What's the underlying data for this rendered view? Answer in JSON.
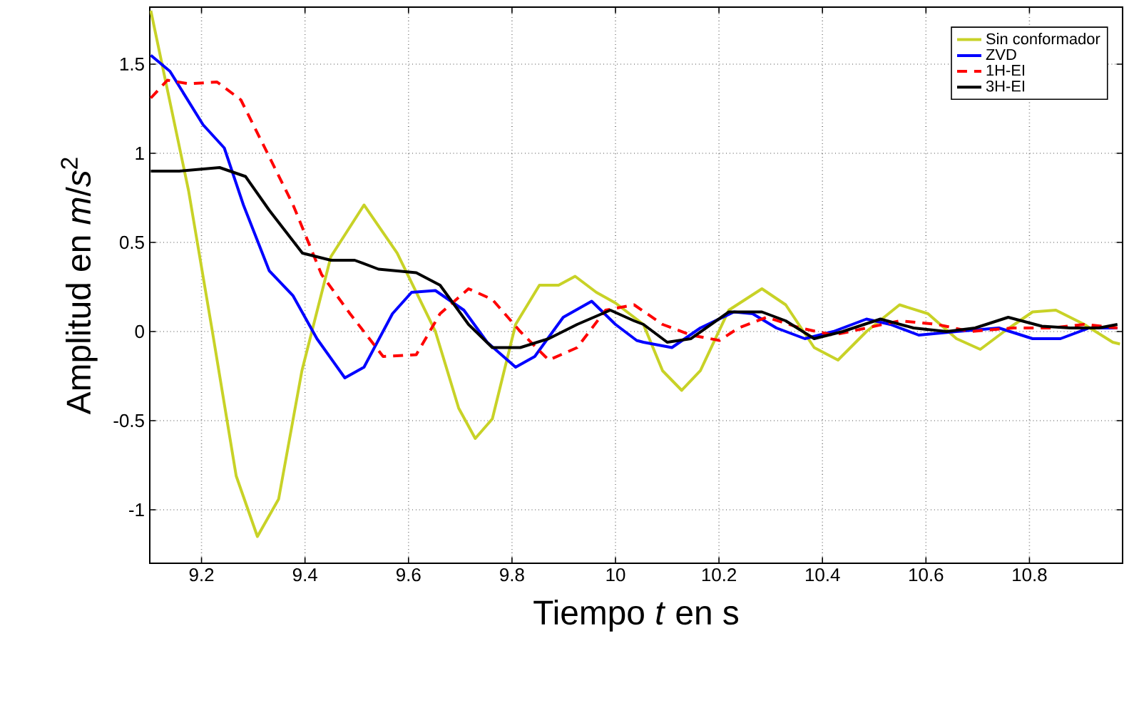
{
  "chart_data": {
    "type": "line",
    "xlabel": "Tiempo *t* en s",
    "ylabel": "Amplitud en *m*/*s*$^{2}$",
    "xlim": [
      9.1,
      10.98
    ],
    "ylim": [
      -1.3,
      1.82
    ],
    "xticks": [
      9.2,
      9.4,
      9.6,
      9.8,
      10,
      10.2,
      10.4,
      10.6,
      10.8
    ],
    "yticks": [
      -1,
      -0.5,
      0,
      0.5,
      1,
      1.5
    ],
    "grid": true,
    "legend": "top right",
    "series": [
      {
        "name": "Sin conformador",
        "color": "#c8d227",
        "line_style": "solid",
        "x": [
          9.102,
          9.175,
          9.221,
          9.267,
          9.308,
          9.349,
          9.394,
          9.45,
          9.514,
          9.578,
          9.652,
          9.697,
          9.729,
          9.762,
          9.807,
          9.853,
          9.89,
          9.922,
          9.963,
          10.0,
          10.054,
          10.091,
          10.128,
          10.164,
          10.219,
          10.283,
          10.329,
          10.384,
          10.43,
          10.485,
          10.549,
          10.604,
          10.659,
          10.705,
          10.751,
          10.806,
          10.851,
          10.906,
          10.961,
          10.975
        ],
        "values": [
          1.8,
          0.79,
          0.0,
          -0.81,
          -1.15,
          -0.94,
          -0.22,
          0.42,
          0.71,
          0.44,
          0.0,
          -0.43,
          -0.6,
          -0.49,
          0.04,
          0.26,
          0.26,
          0.31,
          0.22,
          0.16,
          0.04,
          -0.22,
          -0.33,
          -0.22,
          0.12,
          0.24,
          0.15,
          -0.09,
          -0.16,
          0.0,
          0.15,
          0.1,
          -0.04,
          -0.1,
          0.0,
          0.11,
          0.12,
          0.04,
          -0.06,
          -0.07
        ]
      },
      {
        "name": "ZVD",
        "color": "#0000ff",
        "line_style": "solid",
        "x": [
          9.102,
          9.139,
          9.203,
          9.244,
          9.281,
          9.331,
          9.377,
          9.423,
          9.477,
          9.514,
          9.569,
          9.606,
          9.652,
          9.707,
          9.752,
          9.807,
          9.844,
          9.899,
          9.954,
          10.0,
          10.041,
          10.054,
          10.109,
          10.164,
          10.229,
          10.265,
          10.311,
          10.366,
          10.421,
          10.485,
          10.531,
          10.586,
          10.659,
          10.741,
          10.806,
          10.86,
          10.915,
          10.97
        ],
        "values": [
          1.55,
          1.46,
          1.16,
          1.03,
          0.71,
          0.34,
          0.2,
          -0.04,
          -0.26,
          -0.2,
          0.1,
          0.22,
          0.23,
          0.12,
          -0.06,
          -0.2,
          -0.14,
          0.08,
          0.17,
          0.04,
          -0.05,
          -0.06,
          -0.09,
          0.02,
          0.11,
          0.1,
          0.02,
          -0.04,
          0.0,
          0.07,
          0.04,
          -0.02,
          0.0,
          0.02,
          -0.04,
          -0.04,
          0.02,
          0.02
        ]
      },
      {
        "name": "1H-EI",
        "color": "#ff0000",
        "line_style": "dashed",
        "x": [
          9.102,
          9.134,
          9.175,
          9.23,
          9.276,
          9.331,
          9.377,
          9.432,
          9.487,
          9.551,
          9.615,
          9.661,
          9.716,
          9.762,
          9.816,
          9.871,
          9.926,
          9.981,
          10.036,
          10.091,
          10.146,
          10.201,
          10.238,
          10.292,
          10.357,
          10.421,
          10.485,
          10.549,
          10.622,
          10.686,
          10.769,
          10.842,
          10.906,
          10.97
        ],
        "values": [
          1.31,
          1.41,
          1.39,
          1.4,
          1.3,
          0.98,
          0.71,
          0.32,
          0.1,
          -0.14,
          -0.13,
          0.1,
          0.24,
          0.18,
          0.0,
          -0.16,
          -0.09,
          0.12,
          0.15,
          0.04,
          -0.02,
          -0.05,
          0.02,
          0.08,
          0.02,
          -0.02,
          0.02,
          0.06,
          0.04,
          0.0,
          0.02,
          0.02,
          0.04,
          0.02
        ]
      },
      {
        "name": "3H-EI",
        "color": "#000000",
        "line_style": "solid",
        "x": [
          9.102,
          9.157,
          9.235,
          9.285,
          9.331,
          9.395,
          9.45,
          9.496,
          9.542,
          9.615,
          9.661,
          9.716,
          9.762,
          9.816,
          9.871,
          9.926,
          9.99,
          10.036,
          10.054,
          10.1,
          10.146,
          10.219,
          10.283,
          10.329,
          10.384,
          10.439,
          10.512,
          10.576,
          10.64,
          10.695,
          10.759,
          10.824,
          10.879,
          10.934,
          10.97
        ],
        "values": [
          0.9,
          0.9,
          0.92,
          0.87,
          0.68,
          0.44,
          0.4,
          0.4,
          0.35,
          0.33,
          0.26,
          0.04,
          -0.09,
          -0.09,
          -0.04,
          0.04,
          0.12,
          0.06,
          0.04,
          -0.06,
          -0.04,
          0.11,
          0.11,
          0.06,
          -0.04,
          0.0,
          0.07,
          0.02,
          0.0,
          0.02,
          0.08,
          0.03,
          0.02,
          0.02,
          0.04
        ]
      }
    ]
  }
}
